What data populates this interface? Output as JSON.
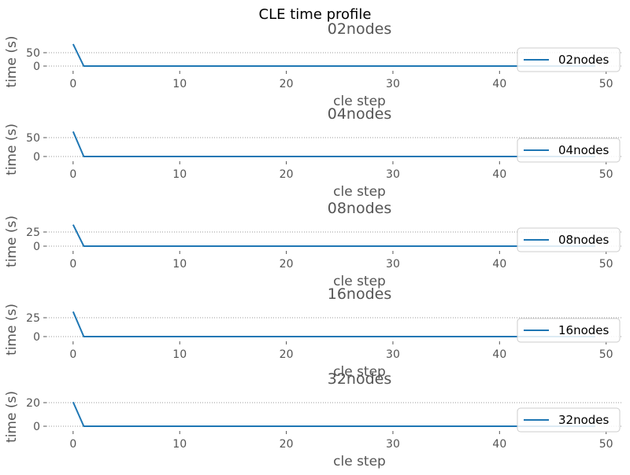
{
  "figure": {
    "title": "CLE time profile",
    "colors": {
      "line": "#1f77b4",
      "text": "#555555",
      "grid": "#999999",
      "legend_border": "#cccccc"
    }
  },
  "chart_data": [
    {
      "type": "line",
      "title": "02nodes",
      "xlabel": "cle step",
      "ylabel": "time (s)",
      "xlim": [
        -2.5,
        51.5
      ],
      "ylim": [
        -8,
        90
      ],
      "xticks": [
        0,
        10,
        20,
        30,
        40,
        50
      ],
      "yticks": [
        0,
        50
      ],
      "grid": "y-dotted",
      "legend": "right",
      "series": [
        {
          "name": "02nodes",
          "x": [
            0,
            1,
            49
          ],
          "y": [
            82,
            0,
            0
          ]
        }
      ]
    },
    {
      "type": "line",
      "title": "04nodes",
      "xlabel": "cle step",
      "ylabel": "time (s)",
      "xlim": [
        -2.5,
        51.5
      ],
      "ylim": [
        -7,
        80
      ],
      "xticks": [
        0,
        10,
        20,
        30,
        40,
        50
      ],
      "yticks": [
        0,
        50
      ],
      "grid": "y-dotted",
      "legend": "right",
      "series": [
        {
          "name": "04nodes",
          "x": [
            0,
            1,
            49
          ],
          "y": [
            66,
            0,
            0
          ]
        }
      ]
    },
    {
      "type": "line",
      "title": "08nodes",
      "xlabel": "cle step",
      "ylabel": "time (s)",
      "xlim": [
        -2.5,
        51.5
      ],
      "ylim": [
        -4,
        44
      ],
      "xticks": [
        0,
        10,
        20,
        30,
        40,
        50
      ],
      "yticks": [
        0,
        25
      ],
      "grid": "y-dotted",
      "legend": "right",
      "series": [
        {
          "name": "08nodes",
          "x": [
            0,
            1,
            49
          ],
          "y": [
            38,
            0,
            0
          ]
        }
      ]
    },
    {
      "type": "line",
      "title": "16nodes",
      "xlabel": "cle step",
      "ylabel": "time (s)",
      "xlim": [
        -2.5,
        51.5
      ],
      "ylim": [
        -3.5,
        38
      ],
      "xticks": [
        0,
        10,
        20,
        30,
        40,
        50
      ],
      "yticks": [
        0,
        25
      ],
      "grid": "y-dotted",
      "legend": "right",
      "series": [
        {
          "name": "16nodes",
          "x": [
            0,
            1,
            49
          ],
          "y": [
            33,
            0,
            0
          ]
        }
      ]
    },
    {
      "type": "line",
      "title": "32nodes",
      "xlabel": "cle step",
      "ylabel": "time (s)",
      "xlim": [
        -2.5,
        51.5
      ],
      "ylim": [
        -2,
        23
      ],
      "xticks": [
        0,
        10,
        20,
        30,
        40,
        50
      ],
      "yticks": [
        0,
        20
      ],
      "grid": "y-dotted",
      "legend": "right",
      "series": [
        {
          "name": "32nodes",
          "x": [
            0,
            1,
            49
          ],
          "y": [
            20.5,
            0,
            0
          ]
        }
      ]
    }
  ]
}
